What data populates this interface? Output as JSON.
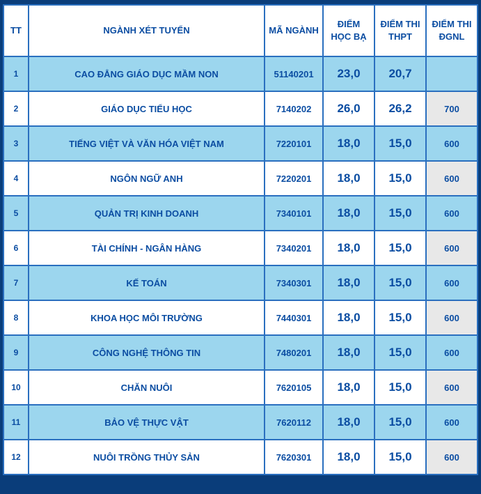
{
  "headers": {
    "tt": "TT",
    "name": "NGÀNH XÉT TUYỂN",
    "code": "MÃ NGÀNH",
    "hocba": "ĐIỂM HỌC BẠ",
    "thpt": "ĐIỂM THI THPT",
    "dgnl": "ĐIỂM THI ĐGNL"
  },
  "rows": [
    {
      "tt": "1",
      "name": "CAO ĐẲNG GIÁO DỤC MẦM NON",
      "code": "51140201",
      "hocba": "23,0",
      "thpt": "20,7",
      "dgnl": ""
    },
    {
      "tt": "2",
      "name": "GIÁO DỤC TIỂU HỌC",
      "code": "7140202",
      "hocba": "26,0",
      "thpt": "26,2",
      "dgnl": "700"
    },
    {
      "tt": "3",
      "name": "TIẾNG VIỆT VÀ VĂN HÓA VIỆT NAM",
      "code": "7220101",
      "hocba": "18,0",
      "thpt": "15,0",
      "dgnl": "600"
    },
    {
      "tt": "4",
      "name": "NGÔN NGỮ ANH",
      "code": "7220201",
      "hocba": "18,0",
      "thpt": "15,0",
      "dgnl": "600"
    },
    {
      "tt": "5",
      "name": "QUẢN TRỊ KINH DOANH",
      "code": "7340101",
      "hocba": "18,0",
      "thpt": "15,0",
      "dgnl": "600"
    },
    {
      "tt": "6",
      "name": "TÀI CHÍNH - NGÂN HÀNG",
      "code": "7340201",
      "hocba": "18,0",
      "thpt": "15,0",
      "dgnl": "600"
    },
    {
      "tt": "7",
      "name": "KẾ TOÁN",
      "code": "7340301",
      "hocba": "18,0",
      "thpt": "15,0",
      "dgnl": "600"
    },
    {
      "tt": "8",
      "name": "KHOA HỌC MÔI TRƯỜNG",
      "code": "7440301",
      "hocba": "18,0",
      "thpt": "15,0",
      "dgnl": "600"
    },
    {
      "tt": "9",
      "name": "CÔNG NGHỆ THÔNG TIN",
      "code": "7480201",
      "hocba": "18,0",
      "thpt": "15,0",
      "dgnl": "600"
    },
    {
      "tt": "10",
      "name": "CHĂN NUÔI",
      "code": "7620105",
      "hocba": "18,0",
      "thpt": "15,0",
      "dgnl": "600"
    },
    {
      "tt": "11",
      "name": "BẢO VỆ THỰC VẬT",
      "code": "7620112",
      "hocba": "18,0",
      "thpt": "15,0",
      "dgnl": "600"
    },
    {
      "tt": "12",
      "name": "NUÔI TRỒNG THỦY SẢN",
      "code": "7620301",
      "hocba": "18,0",
      "thpt": "15,0",
      "dgnl": "600"
    }
  ],
  "style": {
    "body_bg": "#0a3d7a",
    "border_color": "#2a6fbf",
    "text_color": "#0b4da2",
    "row_odd_bg": "#9cd6ee",
    "row_even_bg": "#ffffff",
    "dgnl_even_bg": "#e8e8e8",
    "header_bg": "#ffffff",
    "header_fontsize": 13,
    "name_fontsize": 13,
    "code_fontsize": 13,
    "score_fontsize": 17,
    "dgnl_fontsize": 13,
    "tt_fontsize": 12
  }
}
